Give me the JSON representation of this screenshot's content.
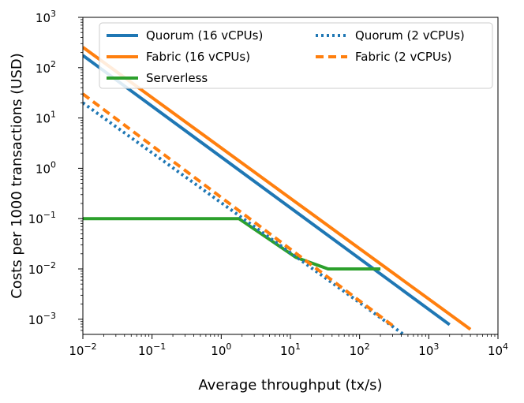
{
  "chart_data": {
    "type": "line",
    "x_scale": "log",
    "y_scale": "log",
    "xlim": [
      0.01,
      10000
    ],
    "ylim": [
      0.0005,
      1000
    ],
    "xlabel": "Average throughput (tx/s)",
    "ylabel": "Costs per 1000 transactions (USD)",
    "x_ticks": [
      {
        "base": "10",
        "exp": "−2",
        "value": 0.01
      },
      {
        "base": "10",
        "exp": "−1",
        "value": 0.1
      },
      {
        "base": "10",
        "exp": "0",
        "value": 1
      },
      {
        "base": "10",
        "exp": "1",
        "value": 10
      },
      {
        "base": "10",
        "exp": "2",
        "value": 100
      },
      {
        "base": "10",
        "exp": "3",
        "value": 1000
      },
      {
        "base": "10",
        "exp": "4",
        "value": 10000
      }
    ],
    "y_ticks": [
      {
        "base": "10",
        "exp": "−3",
        "value": 0.001
      },
      {
        "base": "10",
        "exp": "−2",
        "value": 0.01
      },
      {
        "base": "10",
        "exp": "−1",
        "value": 0.1
      },
      {
        "base": "10",
        "exp": "0",
        "value": 1
      },
      {
        "base": "10",
        "exp": "1",
        "value": 10
      },
      {
        "base": "10",
        "exp": "2",
        "value": 100
      },
      {
        "base": "10",
        "exp": "3",
        "value": 1000
      }
    ],
    "legend_position": "top",
    "series": [
      {
        "name": "Quorum (16 vCPUs)",
        "color": "#1f77b4",
        "style": "solid",
        "x": [
          0.01,
          2000
        ],
        "y": [
          175,
          0.00078
        ]
      },
      {
        "name": "Fabric (16 vCPUs)",
        "color": "#ff7f0e",
        "style": "solid",
        "x": [
          0.01,
          4000
        ],
        "y": [
          255,
          0.00063
        ]
      },
      {
        "name": "Serverless",
        "color": "#2ca02c",
        "style": "solid",
        "x": [
          0.01,
          1.8,
          12,
          35,
          200
        ],
        "y": [
          0.1,
          0.1,
          0.017,
          0.01,
          0.01
        ]
      },
      {
        "name": "Quorum (2 vCPUs)",
        "color": "#1f77b4",
        "style": "dotted",
        "x": [
          0.01,
          450
        ],
        "y": [
          20,
          0.00048
        ]
      },
      {
        "name": "Fabric (2 vCPUs)",
        "color": "#ff7f0e",
        "style": "dashed",
        "x": [
          0.01,
          300
        ],
        "y": [
          30,
          0.00075
        ]
      }
    ]
  }
}
